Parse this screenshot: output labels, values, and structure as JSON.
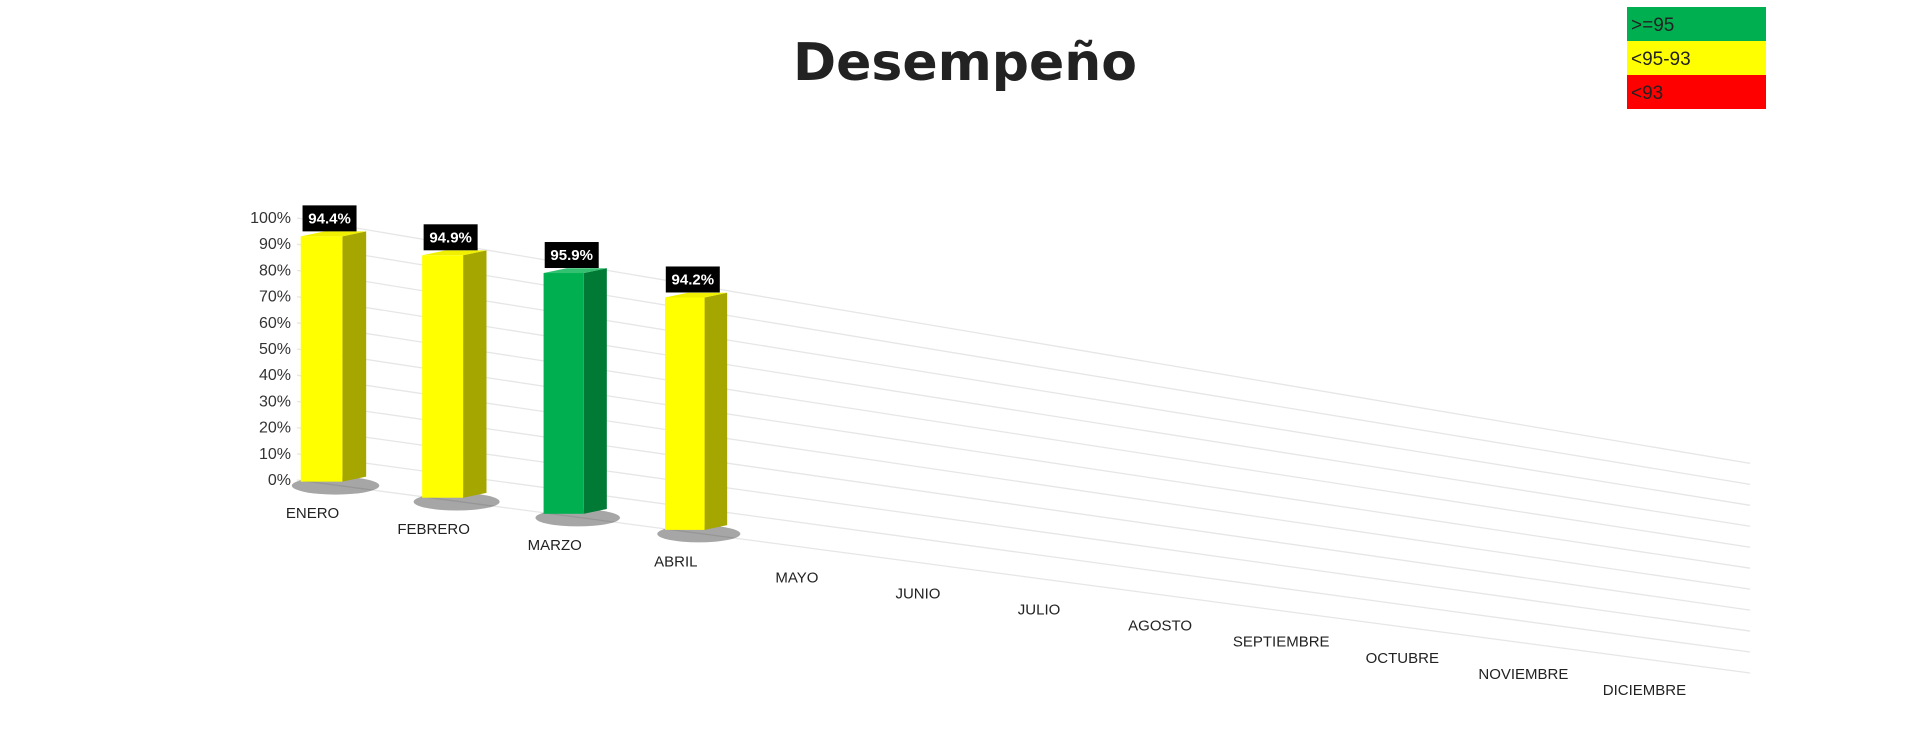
{
  "chart_data": {
    "type": "bar",
    "title": "Desempeño",
    "categories": [
      "ENERO",
      "FEBRERO",
      "MARZO",
      "ABRIL",
      "MAYO",
      "JUNIO",
      "JULIO",
      "AGOSTO",
      "SEPTIEMBRE",
      "OCTUBRE",
      "NOVIEMBRE",
      "DICIEMBRE"
    ],
    "series": [
      {
        "values": [
          94.4,
          94.9,
          95.9,
          94.2,
          null,
          null,
          null,
          null,
          null,
          null,
          null,
          null
        ],
        "data_labels": [
          "94.4%",
          "94.9%",
          "95.9%",
          "94.2%",
          "",
          "",
          "",
          "",
          "",
          "",
          "",
          ""
        ]
      }
    ],
    "ylim": [
      0,
      100
    ],
    "yticks": [
      0,
      10,
      20,
      30,
      40,
      50,
      60,
      70,
      80,
      90,
      100
    ],
    "ytick_labels": [
      "0%",
      "10%",
      "20%",
      "30%",
      "40%",
      "50%",
      "60%",
      "70%",
      "80%",
      "90%",
      "100%"
    ],
    "xlabel": "",
    "ylabel": "",
    "grid": true,
    "style": "3d-perspective",
    "legend": {
      "placement": "top-right",
      "entries": [
        {
          "label": ">=95",
          "color": "#00B050"
        },
        {
          "label": "<95-93",
          "color": "#FFFF00"
        },
        {
          "label": "<93",
          "color": "#FF0000"
        }
      ]
    },
    "colors": {
      "green_front": "#00B050",
      "green_side": "#007A35",
      "yellow_front": "#FFFF00",
      "yellow_side": "#A6A600",
      "label_bg": "#000000",
      "gridline": "#E6E6E6"
    }
  }
}
